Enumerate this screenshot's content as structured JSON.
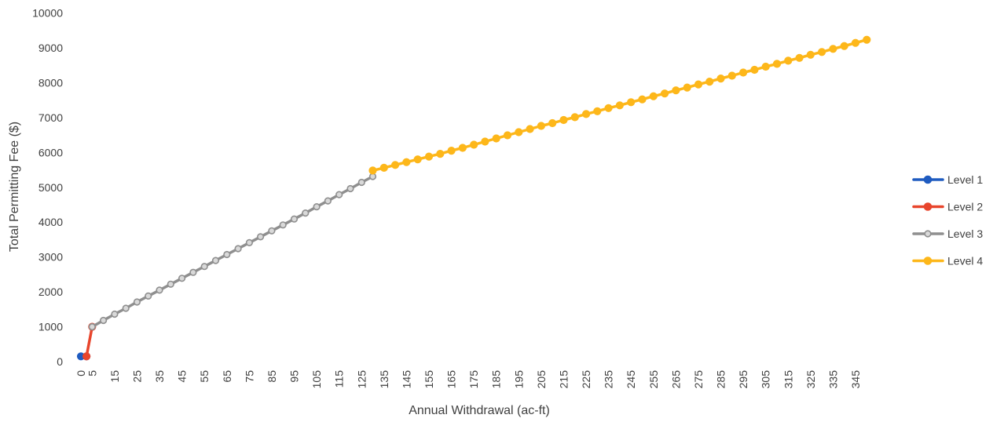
{
  "chart_data": {
    "type": "line",
    "title": "",
    "xlabel": "Annual Withdrawal (ac-ft)",
    "ylabel": "Total Permitting Fee ($)",
    "ylim": [
      0,
      10000
    ],
    "yticks": [
      "0",
      "1000",
      "2000",
      "3000",
      "4000",
      "5000",
      "6000",
      "7000",
      "8000",
      "9000",
      "10000"
    ],
    "xticks": [
      "0",
      "5",
      "15",
      "25",
      "35",
      "45",
      "55",
      "65",
      "75",
      "85",
      "95",
      "105",
      "115",
      "125",
      "135",
      "145",
      "155",
      "165",
      "175",
      "185",
      "195",
      "205",
      "215",
      "225",
      "235",
      "245",
      "255",
      "265",
      "275",
      "285",
      "295",
      "305",
      "315",
      "325",
      "335",
      "345"
    ],
    "grid": false,
    "legend_position": "right",
    "series": [
      {
        "name": "Level 1",
        "color": "#1F5BC0",
        "marker": "filled",
        "points": [
          [
            0,
            150
          ],
          [
            2.5,
            150
          ]
        ]
      },
      {
        "name": "Level 2",
        "color": "#E8452C",
        "marker": "filled",
        "points": [
          [
            2.5,
            150
          ],
          [
            5,
            1000
          ]
        ]
      },
      {
        "name": "Level 3",
        "color": "#8F8F8F",
        "marker": "hollow",
        "points": [
          [
            5,
            1000
          ],
          [
            10,
            1180
          ],
          [
            15,
            1360
          ],
          [
            20,
            1530
          ],
          [
            25,
            1710
          ],
          [
            30,
            1880
          ],
          [
            35,
            2050
          ],
          [
            40,
            2220
          ],
          [
            45,
            2390
          ],
          [
            50,
            2560
          ],
          [
            55,
            2730
          ],
          [
            60,
            2900
          ],
          [
            65,
            3070
          ],
          [
            70,
            3240
          ],
          [
            75,
            3410
          ],
          [
            80,
            3580
          ],
          [
            85,
            3750
          ],
          [
            90,
            3920
          ],
          [
            95,
            4090
          ],
          [
            100,
            4260
          ],
          [
            105,
            4440
          ],
          [
            110,
            4610
          ],
          [
            115,
            4790
          ],
          [
            120,
            4960
          ],
          [
            125,
            5140
          ],
          [
            130,
            5310
          ]
        ]
      },
      {
        "name": "Level 4",
        "color": "#FDB71A",
        "marker": "filled",
        "points": [
          [
            130,
            5480
          ],
          [
            135,
            5560
          ],
          [
            140,
            5640
          ],
          [
            145,
            5720
          ],
          [
            150,
            5800
          ],
          [
            155,
            5880
          ],
          [
            160,
            5960
          ],
          [
            165,
            6050
          ],
          [
            170,
            6130
          ],
          [
            175,
            6220
          ],
          [
            180,
            6310
          ],
          [
            185,
            6400
          ],
          [
            190,
            6490
          ],
          [
            195,
            6580
          ],
          [
            200,
            6670
          ],
          [
            205,
            6760
          ],
          [
            210,
            6840
          ],
          [
            215,
            6930
          ],
          [
            220,
            7010
          ],
          [
            225,
            7100
          ],
          [
            230,
            7180
          ],
          [
            235,
            7270
          ],
          [
            240,
            7350
          ],
          [
            245,
            7440
          ],
          [
            250,
            7520
          ],
          [
            255,
            7610
          ],
          [
            260,
            7690
          ],
          [
            265,
            7780
          ],
          [
            270,
            7860
          ],
          [
            275,
            7950
          ],
          [
            280,
            8030
          ],
          [
            285,
            8120
          ],
          [
            290,
            8200
          ],
          [
            295,
            8290
          ],
          [
            300,
            8370
          ],
          [
            305,
            8460
          ],
          [
            310,
            8540
          ],
          [
            315,
            8630
          ],
          [
            320,
            8710
          ],
          [
            325,
            8800
          ],
          [
            330,
            8880
          ],
          [
            335,
            8970
          ],
          [
            340,
            9050
          ],
          [
            345,
            9140
          ],
          [
            350,
            9230
          ]
        ]
      }
    ]
  }
}
